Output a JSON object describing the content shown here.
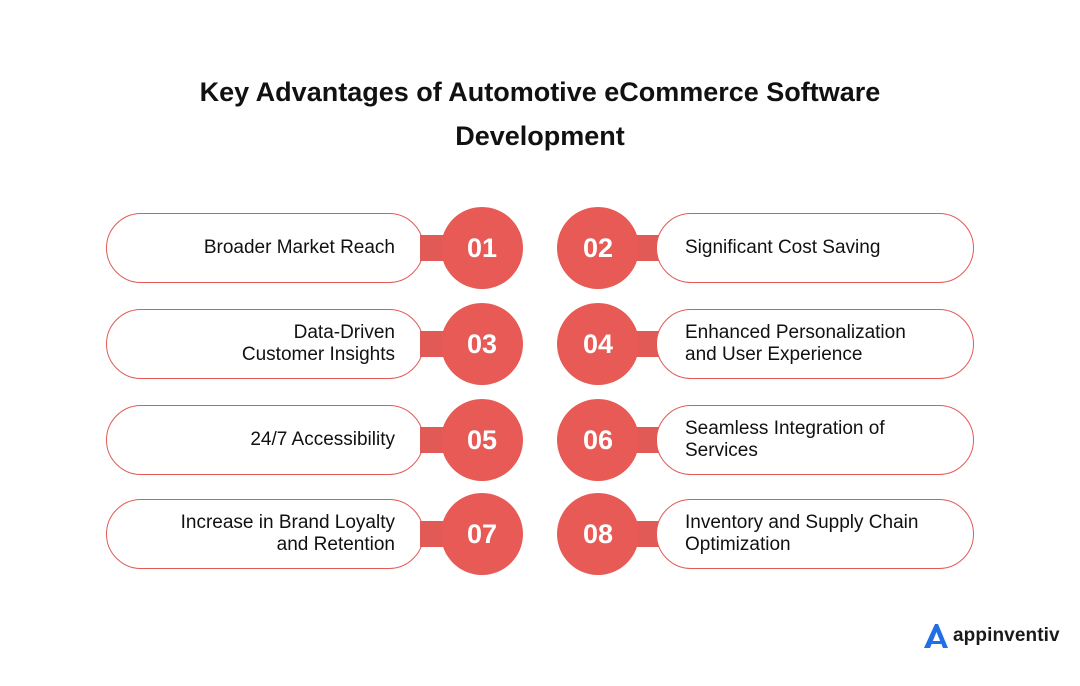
{
  "title": {
    "line1": "Key Advantages of Automotive eCommerce Software",
    "line2": "Development"
  },
  "items": [
    {
      "number": "01",
      "lines": [
        "Broader Market Reach"
      ]
    },
    {
      "number": "02",
      "lines": [
        "Significant Cost Saving"
      ]
    },
    {
      "number": "03",
      "lines": [
        "Data-Driven",
        "Customer Insights"
      ]
    },
    {
      "number": "04",
      "lines": [
        "Enhanced Personalization",
        "and User Experience"
      ]
    },
    {
      "number": "05",
      "lines": [
        "24/7 Accessibility"
      ]
    },
    {
      "number": "06",
      "lines": [
        "Seamless Integration of",
        "Services"
      ]
    },
    {
      "number": "07",
      "lines": [
        "Increase in Brand Loyalty",
        "and Retention"
      ]
    },
    {
      "number": "08",
      "lines": [
        "Inventory and Supply Chain",
        "Optimization"
      ]
    }
  ],
  "logo": {
    "text": "appinventiv",
    "icon": "appinventiv-logo-icon"
  },
  "colors": {
    "accent": "#e85a55",
    "border": "#e25a55",
    "logo_blue": "#1f6fe5"
  }
}
